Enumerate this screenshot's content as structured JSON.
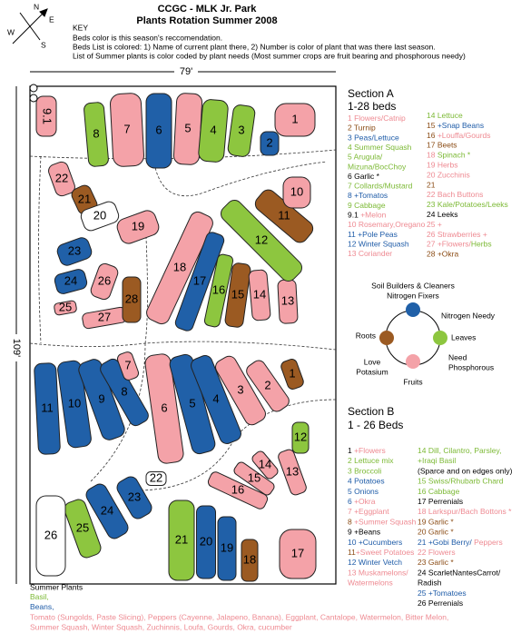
{
  "header": {
    "title": "CCGC - MLK Jr. Park",
    "subtitle": "Plants Rotation Summer 2008"
  },
  "compass": {
    "n": "N",
    "e": "E",
    "s": "S",
    "w": "W"
  },
  "key": [
    "KEY",
    "Beds color is this season's reccomendation.",
    "Beds List is colored: 1) Name of current plant there, 2) Number is color of plant that was there last season.",
    "List of Summer plants is color coded by plant needs (Most summer crops are fruit bearing and phosphorous needy)"
  ],
  "dimensions": {
    "width": "79'",
    "height": "109'"
  },
  "map": {
    "section_a_beds": [
      {
        "label": "9.1",
        "color": "#f4a2a8"
      },
      {
        "label": "8",
        "color": "#8dc63f"
      },
      {
        "label": "7",
        "color": "#f4a2a8"
      },
      {
        "label": "6",
        "color": "#2060a8"
      },
      {
        "label": "5",
        "color": "#f4a2a8"
      },
      {
        "label": "4",
        "color": "#8dc63f"
      },
      {
        "label": "3",
        "color": "#8dc63f"
      },
      {
        "label": "2",
        "color": "#2060a8"
      },
      {
        "label": "1",
        "color": "#f4a2a8"
      },
      {
        "label": "22",
        "color": "#f4a2a8"
      },
      {
        "label": "21",
        "color": "#9b5a22"
      },
      {
        "label": "20",
        "color": "#ffffff"
      },
      {
        "label": "19",
        "color": "#f4a2a8"
      },
      {
        "label": "23",
        "color": "#2060a8"
      },
      {
        "label": "24",
        "color": "#2060a8"
      },
      {
        "label": "25",
        "color": "#f4a2a8"
      },
      {
        "label": "26",
        "color": "#f4a2a8"
      },
      {
        "label": "27",
        "color": "#f4a2a8"
      },
      {
        "label": "28",
        "color": "#9b5a22"
      },
      {
        "label": "18",
        "color": "#f4a2a8"
      },
      {
        "label": "17",
        "color": "#2060a8"
      },
      {
        "label": "16",
        "color": "#8dc63f"
      },
      {
        "label": "15",
        "color": "#9b5a22"
      },
      {
        "label": "14",
        "color": "#f4a2a8"
      },
      {
        "label": "13",
        "color": "#f4a2a8"
      },
      {
        "label": "12",
        "color": "#8dc63f"
      },
      {
        "label": "11",
        "color": "#9b5a22"
      },
      {
        "label": "10",
        "color": "#f4a2a8"
      }
    ],
    "section_b_beds": [
      {
        "label": "11",
        "color": "#2060a8"
      },
      {
        "label": "10",
        "color": "#2060a8"
      },
      {
        "label": "9",
        "color": "#2060a8"
      },
      {
        "label": "8",
        "color": "#2060a8"
      },
      {
        "label": "7",
        "color": "#f4a2a8"
      },
      {
        "label": "6",
        "color": "#f4a2a8"
      },
      {
        "label": "5",
        "color": "#2060a8"
      },
      {
        "label": "4",
        "color": "#2060a8"
      },
      {
        "label": "3",
        "color": "#f4a2a8"
      },
      {
        "label": "2",
        "color": "#f4a2a8"
      },
      {
        "label": "1",
        "color": "#9b5a22"
      },
      {
        "label": "12",
        "color": "#8dc63f"
      },
      {
        "label": "13",
        "color": "#f4a2a8"
      },
      {
        "label": "14",
        "color": "#f4a2a8"
      },
      {
        "label": "15",
        "color": "#f4a2a8"
      },
      {
        "label": "16",
        "color": "#f4a2a8"
      },
      {
        "label": "17",
        "color": "#f4a2a8"
      },
      {
        "label": "18",
        "color": "#9b5a22"
      },
      {
        "label": "19",
        "color": "#2060a8"
      },
      {
        "label": "20",
        "color": "#2060a8"
      },
      {
        "label": "21",
        "color": "#8dc63f"
      },
      {
        "label": "22",
        "color": "#ffffff"
      },
      {
        "label": "23",
        "color": "#2060a8"
      },
      {
        "label": "24",
        "color": "#2060a8"
      },
      {
        "label": "25",
        "color": "#8dc63f"
      },
      {
        "label": "26",
        "color": "#ffffff"
      }
    ]
  },
  "section_a": {
    "title": "Section A",
    "subtitle": "1-28 beds",
    "left": [
      [
        {
          "text": "1 Flowers/Catnip",
          "color": "#ee8a92"
        }
      ],
      [
        {
          "text": "2 Turnip",
          "color": "#8b4c15"
        }
      ],
      [
        {
          "text": "3 Peas/Lettuce",
          "color": "#1f5ca8"
        }
      ],
      [
        {
          "text": "4 Summer Squash",
          "color": "#7cb935"
        }
      ],
      [
        {
          "text": "5 Arugula/",
          "color": "#7cb935"
        }
      ],
      [
        {
          "text": "Mizuna/BocChoy",
          "color": "#7cb935"
        }
      ],
      [
        {
          "text": "6 Garlic *",
          "color": "#000000"
        }
      ],
      [
        {
          "text": "7 Collards/Mustard",
          "color": "#7cb935"
        }
      ],
      [
        {
          "text": "8 +Tomatos",
          "color": "#1f5ca8"
        }
      ],
      [
        {
          "text": "9 Cabbage",
          "color": "#7cb935"
        }
      ],
      [
        {
          "text": "9.1",
          "color": "#000000"
        },
        {
          "text": " +Melon",
          "color": "#ee8a92"
        }
      ],
      [
        {
          "text": "10 Rosemary,Oregano",
          "color": "#ee8a92"
        }
      ],
      [
        {
          "text": "11 +Pole Peas",
          "color": "#1f5ca8"
        }
      ],
      [
        {
          "text": "12 Winter Squash",
          "color": "#1f5ca8"
        }
      ],
      [
        {
          "text": "13 Coriander",
          "color": "#ee8a92"
        }
      ]
    ],
    "right": [
      [
        {
          "text": "14 Lettuce",
          "color": "#7cb935"
        }
      ],
      [
        {
          "text": "15 ",
          "color": "#8b4c15"
        },
        {
          "text": "+Snap Beans",
          "color": "#1f5ca8"
        }
      ],
      [
        {
          "text": "16 ",
          "color": "#8b4c15"
        },
        {
          "text": "+Louffa/Gourds",
          "color": "#ee8a92"
        }
      ],
      [
        {
          "text": "17 Beets",
          "color": "#8b4c15"
        }
      ],
      [
        {
          "text": "18 ",
          "color": "#ee8a92"
        },
        {
          "text": "Spinach *",
          "color": "#7cb935"
        }
      ],
      [
        {
          "text": "19 Herbs",
          "color": "#ee8a92"
        }
      ],
      [
        {
          "text": "20 Zucchinis",
          "color": "#ee8a92"
        }
      ],
      [
        {
          "text": "21",
          "color": "#8b4c15"
        }
      ],
      [
        {
          "text": "22 Bach Buttons",
          "color": "#ee8a92"
        }
      ],
      [
        {
          "text": "23 Kale/Potatoes/Leeks",
          "color": "#7cb935"
        }
      ],
      [
        {
          "text": "24 Leeks",
          "color": "#000000"
        }
      ],
      [
        {
          "text": "25 +",
          "color": "#ee8a92"
        }
      ],
      [
        {
          "text": "26 Strawberries +",
          "color": "#ee8a92"
        }
      ],
      [
        {
          "text": "27 +Flowers/",
          "color": "#ee8a92"
        },
        {
          "text": "Herbs",
          "color": "#7cb935"
        }
      ],
      [
        {
          "text": "28 +Okra",
          "color": "#8b4c15"
        }
      ]
    ]
  },
  "cycle": {
    "soil_builders": "Soil Builders & Cleaners",
    "nitrogen_fixers": "Nitrogen Fixers",
    "nitrogen_needy": "Nitrogen Needy",
    "leaves": "Leaves",
    "need": "Need",
    "phosphorous": "Phosphorous",
    "fruits": "Fruits",
    "love": "Love",
    "potasium": "Potasium",
    "roots": "Roots"
  },
  "section_b": {
    "title": "Section B",
    "subtitle": "1 - 26 Beds",
    "left": [
      [
        {
          "text": "1 ",
          "color": "#000000"
        },
        {
          "text": "+Flowers",
          "color": "#ee8a92"
        }
      ],
      [
        {
          "text": "2 Lettuce mix",
          "color": "#7cb935"
        }
      ],
      [
        {
          "text": "3 Broccoli",
          "color": "#7cb935"
        }
      ],
      [
        {
          "text": "4 Potatoes",
          "color": "#1f5ca8"
        }
      ],
      [
        {
          "text": "5 Onions",
          "color": "#1f5ca8"
        }
      ],
      [
        {
          "text": "6 ",
          "color": "#1f5ca8"
        },
        {
          "text": "+Okra",
          "color": "#ee8a92"
        }
      ],
      [
        {
          "text": "7 +Eggplant",
          "color": "#ee8a92"
        }
      ],
      [
        {
          "text": "8 ",
          "color": "#8b4c15"
        },
        {
          "text": "+Summer Squash",
          "color": "#ee8a92"
        }
      ],
      [
        {
          "text": "9 +Beans",
          "color": "#000000"
        }
      ],
      [
        {
          "text": "10 ",
          "color": "#1f5ca8"
        },
        {
          "text": "+Cucumbers",
          "color": "#1f5ca8"
        }
      ],
      [
        {
          "text": "11",
          "color": "#8b4c15"
        },
        {
          "text": "+Sweet Potatoes",
          "color": "#ee8a92"
        }
      ],
      [
        {
          "text": "12 Winter Vetch",
          "color": "#1f5ca8"
        }
      ],
      [
        {
          "text": "13  Muskamelons/",
          "color": "#ee8a92"
        }
      ],
      [
        {
          "text": "Watermelons",
          "color": "#ee8a92"
        }
      ]
    ],
    "right": [
      [
        {
          "text": "14 Dill, Cilantro, Parsley,",
          "color": "#7cb935"
        }
      ],
      [
        {
          "text": "+Iraqi Basil",
          "color": "#7cb935"
        }
      ],
      [
        {
          "text": "(Sparce and on edges only)",
          "color": "#000000"
        }
      ],
      [
        {
          "text": "15  Swiss/Rhubarb Chard",
          "color": "#7cb935"
        }
      ],
      [
        {
          "text": "16 Cabbage",
          "color": "#7cb935"
        }
      ],
      [
        {
          "text": "17 Perrenials",
          "color": "#000000"
        }
      ],
      [
        {
          "text": "18 Larkspur/Bach Bottons *",
          "color": "#ee8a92"
        }
      ],
      [
        {
          "text": "19 Garlic *",
          "color": "#8b4c15"
        }
      ],
      [
        {
          "text": "20 Garlic *",
          "color": "#8b4c15"
        }
      ],
      [
        {
          "text": "21 +Gobi Berry/ ",
          "color": "#1f5ca8"
        },
        {
          "text": "Peppers",
          "color": "#ee8a92"
        }
      ],
      [
        {
          "text": "22 Flowers",
          "color": "#ee8a92"
        }
      ],
      [
        {
          "text": "23 Garlic *",
          "color": "#8b4c15"
        }
      ],
      [
        {
          "text": "24 ScarletNantesCarrot/",
          "color": "#000000"
        }
      ],
      [
        {
          "text": "Radish",
          "color": "#000000"
        }
      ],
      [
        {
          "text": "25 +Tomatoes",
          "color": "#1f5ca8"
        }
      ],
      [
        {
          "text": "26 Perrenials",
          "color": "#000000"
        }
      ]
    ]
  },
  "summer_plants": {
    "title": "Summer Plants",
    "lines": [
      [
        {
          "text": "Basil,",
          "color": "#7cb935"
        }
      ],
      [
        {
          "text": "Beans,",
          "color": "#1f5ca8"
        }
      ],
      [
        {
          "text": "Tomato (Sungolds, Paste Slicing), Peppers (Cayenne, Jalapeno, Banana), Eggplant, Cantalope, Watermelon, Bitter Melon,",
          "color": "#ee8a92"
        }
      ],
      [
        {
          "text": "Summer Squash, Winter Squash, Zuchinnis, Loufa, Gourds, Okra, cucumber",
          "color": "#ee8a92"
        }
      ]
    ]
  }
}
